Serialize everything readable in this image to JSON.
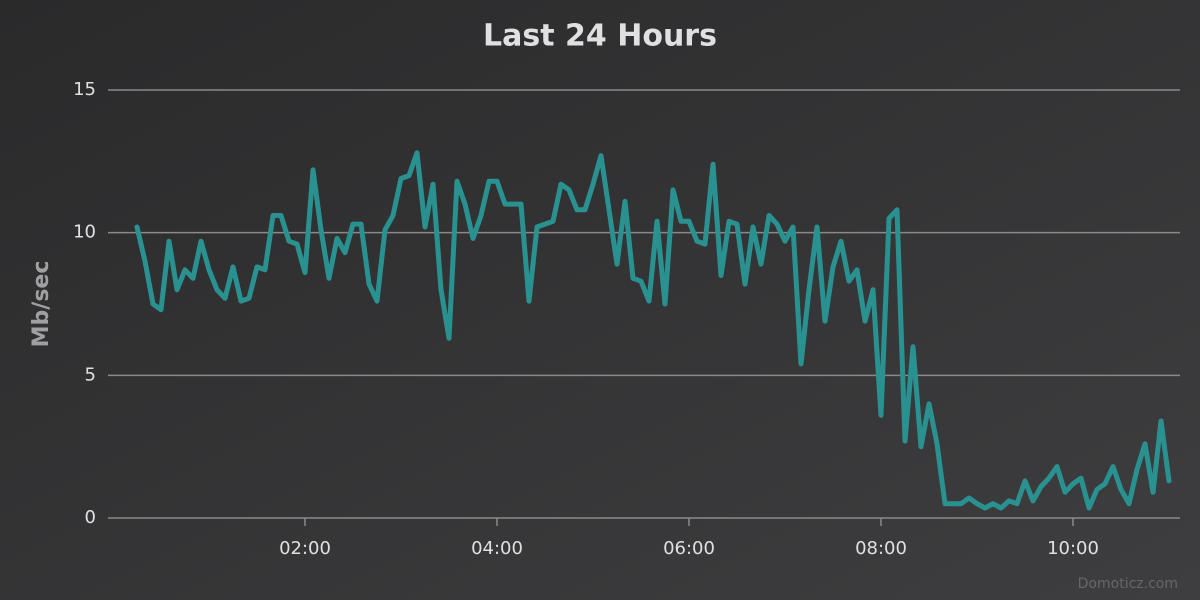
{
  "chart_data": {
    "type": "line",
    "title": "Last 24 Hours",
    "y_label": "Mb/sec",
    "credit": "Domoticz.com",
    "x": [
      "00:15",
      "00:20",
      "00:25",
      "00:30",
      "00:35",
      "00:40",
      "00:45",
      "00:50",
      "00:55",
      "01:00",
      "01:05",
      "01:10",
      "01:15",
      "01:20",
      "01:25",
      "01:30",
      "01:35",
      "01:40",
      "01:45",
      "01:50",
      "01:55",
      "02:00",
      "02:05",
      "02:10",
      "02:15",
      "02:20",
      "02:25",
      "02:30",
      "02:35",
      "02:40",
      "02:45",
      "02:50",
      "02:55",
      "03:00",
      "03:05",
      "03:10",
      "03:15",
      "03:20",
      "03:25",
      "03:30",
      "03:35",
      "03:40",
      "03:45",
      "03:50",
      "03:55",
      "04:00",
      "04:05",
      "04:10",
      "04:15",
      "04:20",
      "04:25",
      "04:30",
      "04:35",
      "04:40",
      "04:45",
      "04:50",
      "04:55",
      "05:00",
      "05:05",
      "05:10",
      "05:15",
      "05:20",
      "05:25",
      "05:30",
      "05:35",
      "05:40",
      "05:45",
      "05:50",
      "05:55",
      "06:00",
      "06:05",
      "06:10",
      "06:15",
      "06:20",
      "06:25",
      "06:30",
      "06:35",
      "06:40",
      "06:45",
      "06:50",
      "06:55",
      "07:00",
      "07:05",
      "07:10",
      "07:15",
      "07:20",
      "07:25",
      "07:30",
      "07:35",
      "07:40",
      "07:45",
      "07:50",
      "07:55",
      "08:00",
      "08:05",
      "08:10",
      "08:15",
      "08:20",
      "08:25",
      "08:30",
      "08:35",
      "08:40",
      "08:45",
      "08:50",
      "08:55",
      "09:00",
      "09:05",
      "09:10",
      "09:15",
      "09:20",
      "09:25",
      "09:30",
      "09:35",
      "09:40",
      "09:45",
      "09:50",
      "09:55",
      "10:00",
      "10:05",
      "10:10",
      "10:15",
      "10:20",
      "10:25",
      "10:30",
      "10:35",
      "10:40",
      "10:45",
      "10:50",
      "10:55",
      "11:00"
    ],
    "series": [
      {
        "name": "Mb/sec",
        "color": "#2a9191",
        "values": [
          10.2,
          9.0,
          7.5,
          7.3,
          9.7,
          8.0,
          8.7,
          8.4,
          9.7,
          8.7,
          8.0,
          7.7,
          8.8,
          7.6,
          7.7,
          8.8,
          8.7,
          10.6,
          10.6,
          9.7,
          9.6,
          8.6,
          12.2,
          10.1,
          8.4,
          9.8,
          9.3,
          10.3,
          10.3,
          8.2,
          7.6,
          10.1,
          10.6,
          11.9,
          12.0,
          12.8,
          10.2,
          11.7,
          8.0,
          6.3,
          11.8,
          11.0,
          9.8,
          10.6,
          11.8,
          11.8,
          11.0,
          11.0,
          11.0,
          7.6,
          10.2,
          10.3,
          10.4,
          11.7,
          11.5,
          10.8,
          10.8,
          11.7,
          12.7,
          10.8,
          8.9,
          11.1,
          8.4,
          8.3,
          7.6,
          10.4,
          7.5,
          11.5,
          10.4,
          10.4,
          9.7,
          9.6,
          12.4,
          8.5,
          10.4,
          10.3,
          8.2,
          10.2,
          8.9,
          10.6,
          10.3,
          9.7,
          10.2,
          5.4,
          8.0,
          10.2,
          6.9,
          8.8,
          9.7,
          8.3,
          8.7,
          6.9,
          8.0,
          3.6,
          10.5,
          10.8,
          2.7,
          6.0,
          2.5,
          4.0,
          2.6,
          0.5,
          0.5,
          0.5,
          0.7,
          0.5,
          0.35,
          0.5,
          0.35,
          0.6,
          0.5,
          1.3,
          0.6,
          1.1,
          1.4,
          1.8,
          0.9,
          1.2,
          1.4,
          0.35,
          1.0,
          1.2,
          1.8,
          1.0,
          0.5,
          1.7,
          2.6,
          0.9,
          3.4,
          1.3
        ]
      }
    ],
    "xlim": [
      "00:00",
      "11:05"
    ],
    "xticks": [
      "02:00",
      "04:00",
      "06:00",
      "08:00",
      "10:00"
    ],
    "ylim": [
      0,
      15
    ],
    "yticks": [
      0,
      5,
      10,
      15
    ],
    "grid": true
  }
}
